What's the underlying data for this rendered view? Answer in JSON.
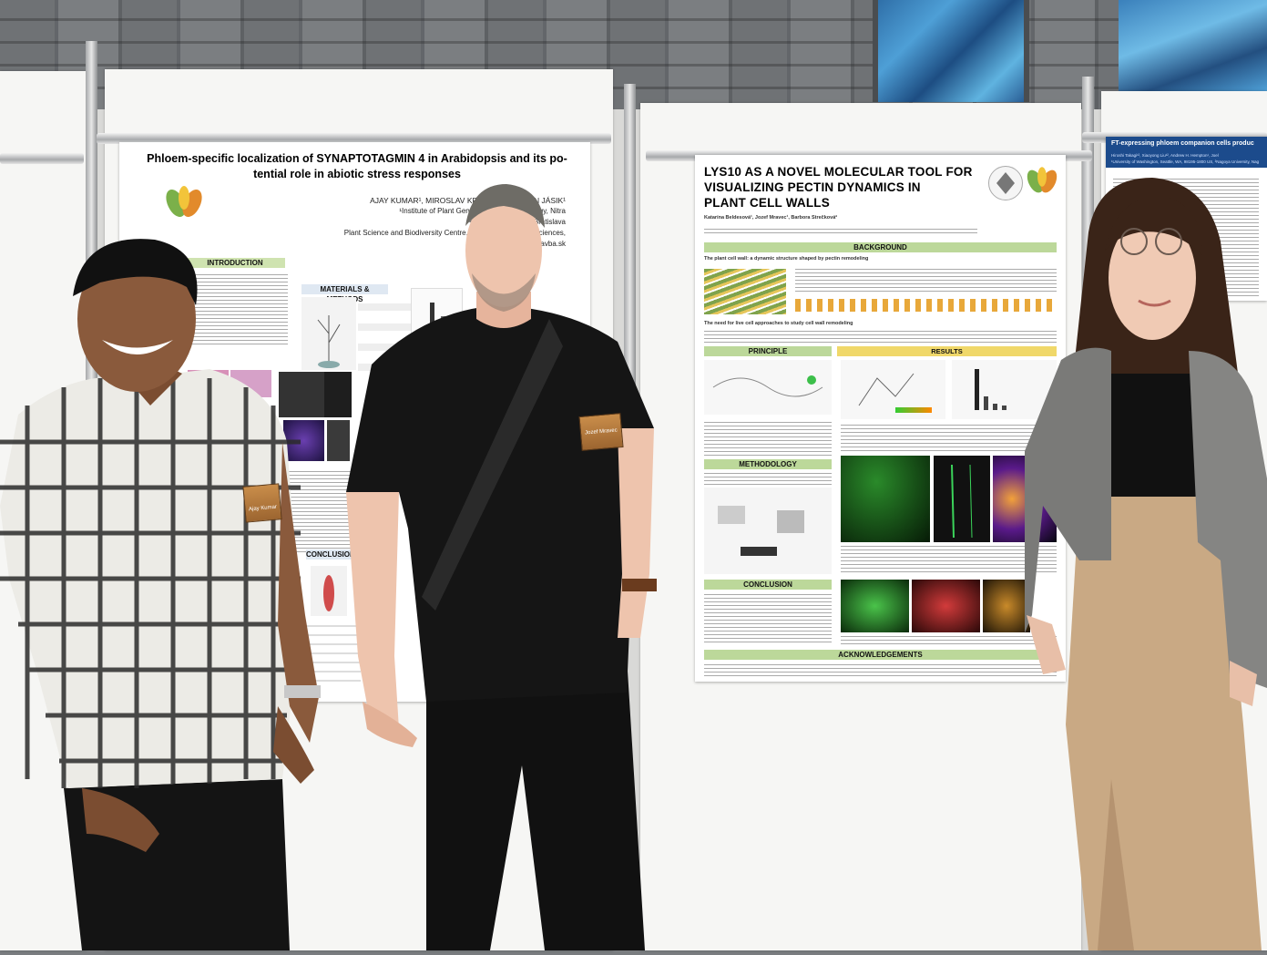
{
  "poster_left": {
    "title_line1": "Phloem-specific localization of SYNAPTOTAGMIN 4 in Arabidopsis and its po-",
    "title_line2": "tential role in abiotic stress responses",
    "authors": "AJAY KUMAR¹, MIROSLAV KRAUSKO¹ and JÁN JÁSIK¹",
    "affiliation1": "¹Institute of Plant Genetics and Biotechnology, Nitra",
    "affiliation2": "²Institute of Botany, Bratislava",
    "affiliation3": "Plant Science and Biodiversity Centre, Slovak Academy of Sciences,",
    "email": "ajay.kumar@savba.sk",
    "sections": [
      "INTRODUCTION",
      "MATERIALS & METHODS",
      "CONCLUSION"
    ]
  },
  "poster_middle": {
    "title_line1": "LYS10 AS A NOVEL MOLECULAR TOOL FOR",
    "title_line2": "VISUALIZING PECTIN DYNAMICS IN",
    "title_line3": "PLANT CELL WALLS",
    "authors": "Katarína Beldesová¹, Jozef Mravec¹, Barbora Strečková²",
    "sections": {
      "background": "BACKGROUND",
      "background_sub": "The plant cell wall: a dynamic structure shaped by pectin remodeling",
      "need": "The need for live cell approaches to study cell wall remodeling",
      "principle": "PRINCIPLE",
      "results": "RESULTS",
      "methodology": "METHODOLOGY",
      "conclusion": "CONCLUSION",
      "acknowledgements": "ACKNOWLEDGEMENTS"
    }
  },
  "poster_right": {
    "title": "FT-expressing phloem companion cells produc",
    "authors": "Hiroshi Takagi¹², Xiaoyong Liu¹², Andrew H. Hempton¹, Joel",
    "affiliation": "¹University of Washington, Seattle, WA, 98195-1800 US, ²Nagoya University, Nag"
  },
  "badges": {
    "left": "Ajay Kumar",
    "middle": "Jozef Mravec"
  },
  "colors": {
    "section_green": "#bcd89a",
    "section_yellow": "#f0d86a",
    "poster_right_header": "#1c4b8c"
  }
}
